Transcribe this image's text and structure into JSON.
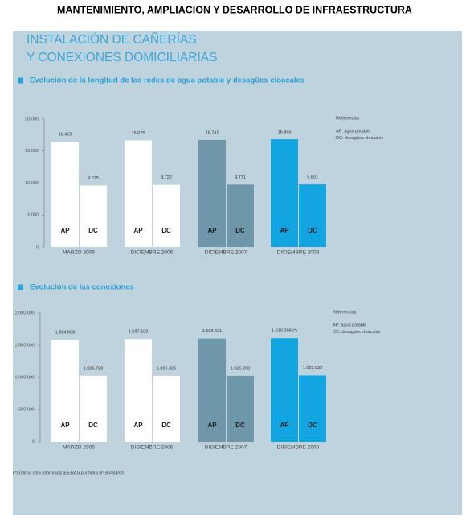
{
  "page_title": "MANTENIMIENTO, AMPLIACION Y DESARROLLO DE INFRAESTRUCTURA",
  "heading": [
    "INSTALACIÓN DE CAÑERÍAS",
    "Y CONEXIONES DOMICILIARIAS"
  ],
  "footnote": "(*) Última cifra informada al ERAS por Nota N° 86484/09",
  "chart_data": [
    {
      "type": "bar",
      "title": "Evolución de la longitud de las redes de agua potable y desagües cloacales",
      "categories": [
        "MARZO 2006",
        "DICIEMBRE 2006",
        "DICIEMBRE 2007",
        "DICIEMBRE 2008"
      ],
      "series": [
        {
          "name": "AP",
          "colors": [
            "#ffffff",
            "#ffffff",
            "#6e98a9",
            "#12a5e2"
          ],
          "values": [
            16459,
            16675,
            16741,
            16845
          ],
          "value_labels": [
            "16.459",
            "16.675",
            "16.741",
            "16.845"
          ]
        },
        {
          "name": "DC",
          "colors": [
            "#ffffff",
            "#ffffff",
            "#6e98a9",
            "#12a5e2"
          ],
          "values": [
            9625,
            9722,
            9771,
            9801
          ],
          "value_labels": [
            "9.625",
            "9.722",
            "9.771",
            "9.801"
          ]
        }
      ],
      "ylim": [
        0,
        20000
      ],
      "yticks": [
        0,
        {
          "value": 5000,
          "label": "5.000"
        },
        {
          "value": 10000,
          "label": "10.000"
        },
        {
          "value": 15000,
          "label": "15.000"
        },
        {
          "value": 20000,
          "label": "20.000"
        }
      ],
      "legend": {
        "title": "Referencias",
        "items": [
          "AP: agua potable",
          "DC: desagües cloacales"
        ]
      }
    },
    {
      "type": "bar",
      "title": "Evolución de las conexiones",
      "categories": [
        "MARZO 2006",
        "DICIEMBRE 2006",
        "DICIEMBRE 2007",
        "DICIEMBRE 2008"
      ],
      "series": [
        {
          "name": "AP",
          "colors": [
            "#ffffff",
            "#ffffff",
            "#6e98a9",
            "#12a5e2"
          ],
          "values": [
            1584608,
            1597103,
            1603421,
            1610098
          ],
          "value_labels": [
            "1.584.608",
            "1.597.103",
            "1.603.421",
            "1.610.098 (*)"
          ]
        },
        {
          "name": "DC",
          "colors": [
            "#ffffff",
            "#ffffff",
            "#6e98a9",
            "#12a5e2"
          ],
          "values": [
            1026728,
            1026326,
            1025288,
            1032032
          ],
          "value_labels": [
            "1.026.728",
            "1.026.326",
            "1.025.288",
            "1.032.032"
          ]
        }
      ],
      "ylim": [
        0,
        2000000
      ],
      "yticks": [
        0,
        {
          "value": 500000,
          "label": "500.000"
        },
        {
          "value": 1000000,
          "label": "1.000.000"
        },
        {
          "value": 1500000,
          "label": "1.500.000"
        },
        {
          "value": 2000000,
          "label": "2.000.000"
        }
      ],
      "legend": {
        "title": "Referencias",
        "items": [
          "AP: agua potable",
          "DC: desagües cloacales"
        ]
      }
    }
  ]
}
